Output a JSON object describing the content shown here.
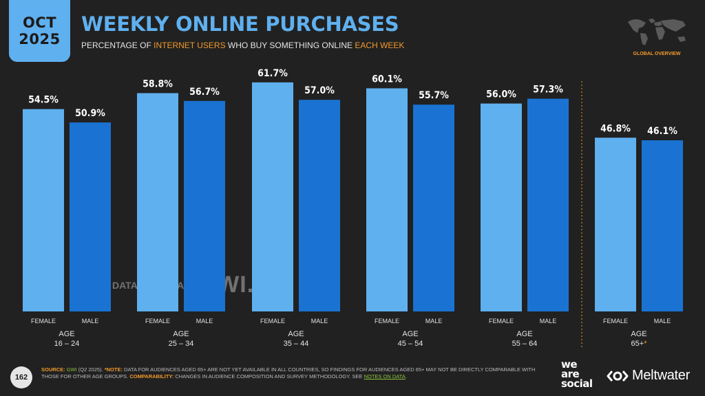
{
  "header": {
    "date_month": "OCT",
    "date_year": "2025",
    "title": "WEEKLY ONLINE PURCHASES",
    "subtitle_part1": "PERCENTAGE OF ",
    "subtitle_hl1": "INTERNET USERS",
    "subtitle_part2": " WHO BUY SOMETHING ONLINE ",
    "subtitle_hl2": "EACH WEEK",
    "global_label": "GLOBAL OVERVIEW"
  },
  "colors": {
    "female": "#5fb0ef",
    "male": "#1a73d2",
    "accent_orange": "#f39a2b",
    "background": "#212121"
  },
  "chart_data": {
    "type": "bar",
    "categories": [
      "16 – 24",
      "25 – 34",
      "35 – 44",
      "45 – 54",
      "55 – 64",
      "65+"
    ],
    "category_prefix": "AGE",
    "category_marker": [
      "",
      "",
      "",
      "",
      "",
      "*"
    ],
    "series": [
      {
        "name": "FEMALE",
        "values": [
          54.5,
          58.8,
          61.7,
          60.1,
          56.0,
          46.8
        ],
        "labels": [
          "54.5%",
          "58.8%",
          "61.7%",
          "60.1%",
          "56.0%",
          "46.8%"
        ]
      },
      {
        "name": "MALE",
        "values": [
          50.9,
          56.7,
          57.0,
          55.7,
          57.3,
          46.1
        ],
        "labels": [
          "50.9%",
          "56.7%",
          "57.0%",
          "55.7%",
          "57.3%",
          "46.1%"
        ]
      }
    ],
    "ylim": [
      0,
      100
    ],
    "grid": false,
    "legend": "none",
    "separator_before_last_group": true
  },
  "watermark": {
    "datareportal": "DATAREPORTAL",
    "gwi": "GWI."
  },
  "footer": {
    "page_number": "162",
    "source_key": "SOURCE:",
    "source_name": "GWI",
    "source_rest": " (Q2 2025). ",
    "note_key": "*NOTE:",
    "note_text": " DATA FOR AUDIENCES AGED 65+ ARE NOT YET AVAILABLE IN ALL COUNTRIES, SO FINDINGS FOR AUDIENCES AGED 65+ MAY NOT BE DIRECTLY COMPARABLE WITH THOSE FOR OTHER AGE GROUPS. ",
    "comp_key": "COMPARABILITY:",
    "comp_text": " CHANGES IN AUDIENCE COMPOSITION AND SURVEY METHODOLOGY. SEE ",
    "comp_link": "NOTES ON DATA",
    "comp_end": "."
  },
  "logos": {
    "wearesocial_1": "we",
    "wearesocial_2": "are",
    "wearesocial_3": "social",
    "meltwater": "Meltwater"
  }
}
